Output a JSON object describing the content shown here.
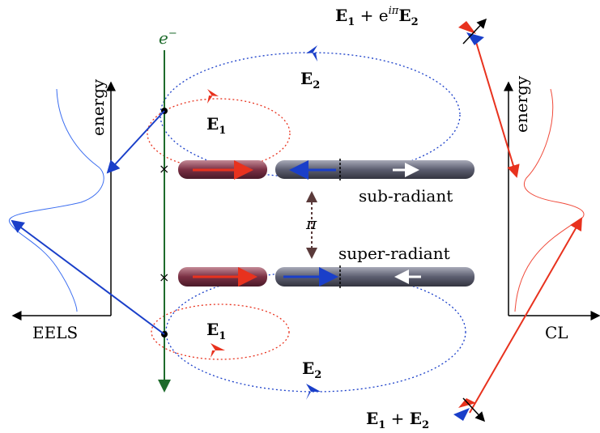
{
  "electron": [
    "e",
    "−"
  ],
  "field_upper_e2": [
    "E",
    "2"
  ],
  "field_upper_e1": [
    "E",
    "1"
  ],
  "field_lower_e1": [
    "E",
    "1"
  ],
  "field_lower_e2": [
    "E",
    "2"
  ],
  "mode_sub": "sub-radiant",
  "phase": "π",
  "mode_super": "super-radiant",
  "eels": {
    "axis_label": "energy",
    "label": "EELS"
  },
  "cl": {
    "axis_label": "energy",
    "label": "CL"
  },
  "sum_top": [
    "E",
    "1",
    " + e",
    "iπ",
    "E",
    "2"
  ],
  "sum_bottom": [
    "E",
    "1",
    " + ",
    "E",
    "2"
  ]
}
